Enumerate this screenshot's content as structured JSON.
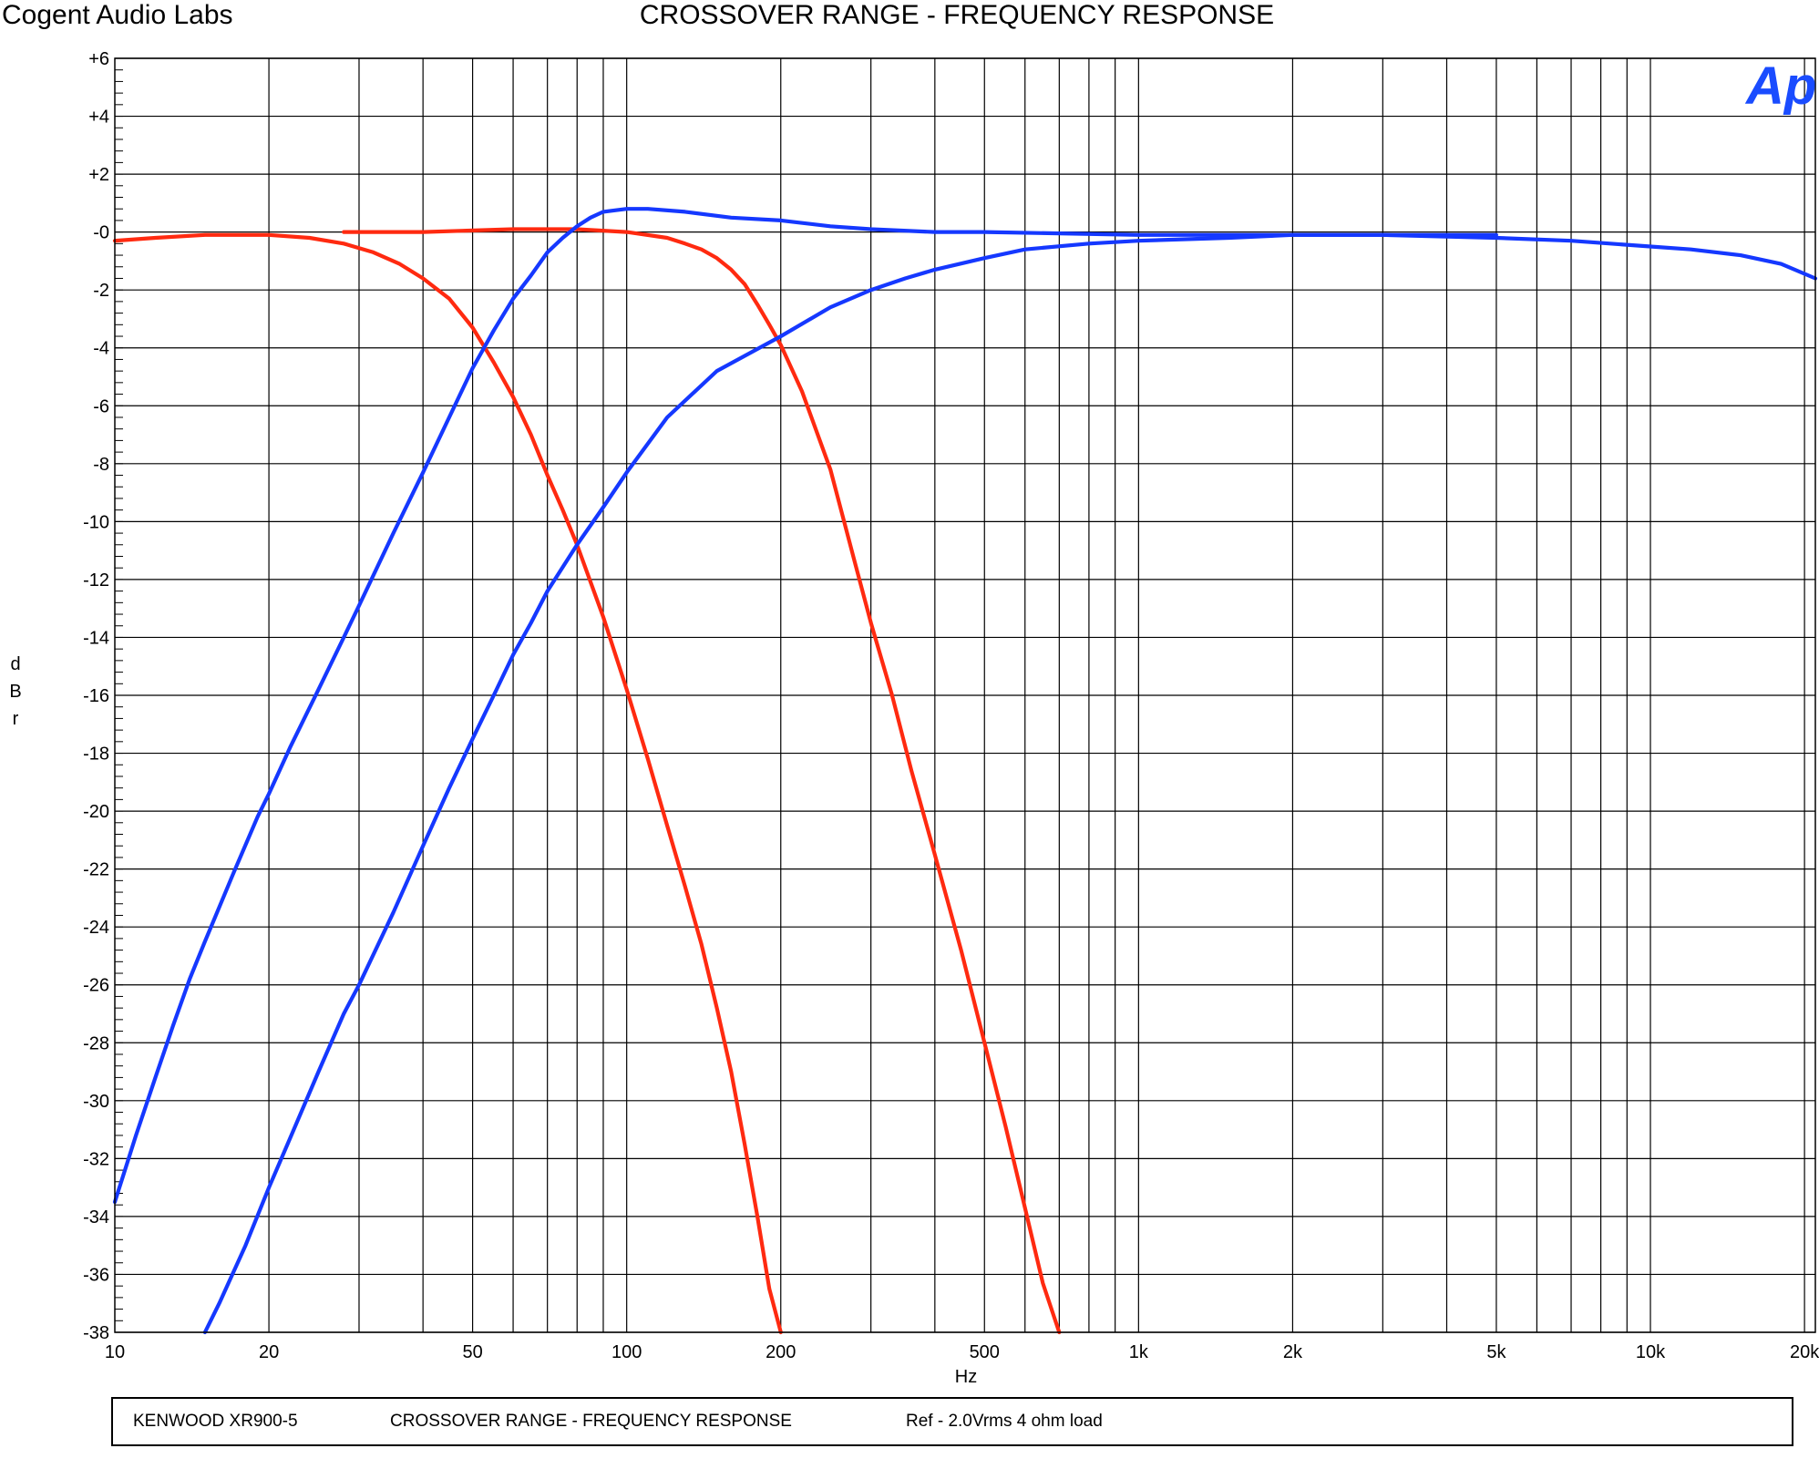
{
  "header": {
    "brand": "Cogent Audio Labs",
    "title": "CROSSOVER RANGE  -  FREQUENCY RESPONSE"
  },
  "logo_text": "Ap",
  "colors": {
    "blue": "#1538ff",
    "red": "#ff2a10",
    "grid": "#000000",
    "logo": "#1a4cff"
  },
  "footer": {
    "model": "KENWOOD XR900-5",
    "test": "CROSSOVER RANGE  -  FREQUENCY RESPONSE",
    "ref": "Ref - 2.0Vrms   4 ohm load"
  },
  "chart_data": {
    "type": "line",
    "title": "CROSSOVER RANGE  -  FREQUENCY RESPONSE",
    "xlabel": "Hz",
    "ylabel": "dBr",
    "x_scale": "log",
    "xlim": [
      10,
      21000
    ],
    "ylim": [
      -38,
      6
    ],
    "grid": true,
    "x_ticks": [
      {
        "value": 10,
        "label": "10"
      },
      {
        "value": 20,
        "label": "20"
      },
      {
        "value": 50,
        "label": "50"
      },
      {
        "value": 100,
        "label": "100"
      },
      {
        "value": 200,
        "label": "200"
      },
      {
        "value": 500,
        "label": "500"
      },
      {
        "value": 1000,
        "label": "1k"
      },
      {
        "value": 2000,
        "label": "2k"
      },
      {
        "value": 5000,
        "label": "5k"
      },
      {
        "value": 10000,
        "label": "10k"
      },
      {
        "value": 20000,
        "label": "20k"
      }
    ],
    "y_ticks": [
      {
        "value": 6,
        "label": "+6"
      },
      {
        "value": 4,
        "label": "+4"
      },
      {
        "value": 2,
        "label": "+2"
      },
      {
        "value": 0,
        "label": "-0"
      },
      {
        "value": -2,
        "label": "-2"
      },
      {
        "value": -4,
        "label": "-4"
      },
      {
        "value": -6,
        "label": "-6"
      },
      {
        "value": -8,
        "label": "-8"
      },
      {
        "value": -10,
        "label": "-10"
      },
      {
        "value": -12,
        "label": "-12"
      },
      {
        "value": -14,
        "label": "-14"
      },
      {
        "value": -16,
        "label": "-16"
      },
      {
        "value": -18,
        "label": "-18"
      },
      {
        "value": -20,
        "label": "-20"
      },
      {
        "value": -22,
        "label": "-22"
      },
      {
        "value": -24,
        "label": "-24"
      },
      {
        "value": -26,
        "label": "-26"
      },
      {
        "value": -28,
        "label": "-28"
      },
      {
        "value": -30,
        "label": "-30"
      },
      {
        "value": -32,
        "label": "-32"
      },
      {
        "value": -34,
        "label": "-34"
      },
      {
        "value": -36,
        "label": "-36"
      },
      {
        "value": -38,
        "label": "-38"
      }
    ],
    "series": [
      {
        "color": "#ff2a10",
        "points": [
          [
            10,
            -0.3
          ],
          [
            12,
            -0.2
          ],
          [
            15,
            -0.1
          ],
          [
            20,
            -0.1
          ],
          [
            24,
            -0.2
          ],
          [
            28,
            -0.4
          ],
          [
            32,
            -0.7
          ],
          [
            36,
            -1.1
          ],
          [
            40,
            -1.6
          ],
          [
            45,
            -2.3
          ],
          [
            50,
            -3.3
          ],
          [
            55,
            -4.5
          ],
          [
            60,
            -5.7
          ],
          [
            65,
            -7.0
          ],
          [
            70,
            -8.4
          ],
          [
            75,
            -9.6
          ],
          [
            80,
            -10.8
          ],
          [
            90,
            -13.3
          ],
          [
            100,
            -15.8
          ],
          [
            110,
            -18.2
          ],
          [
            120,
            -20.5
          ],
          [
            130,
            -22.6
          ],
          [
            140,
            -24.6
          ],
          [
            150,
            -26.8
          ],
          [
            160,
            -29.0
          ],
          [
            170,
            -31.5
          ],
          [
            180,
            -34.0
          ],
          [
            190,
            -36.5
          ],
          [
            200,
            -38.0
          ]
        ]
      },
      {
        "color": "#ff2a10",
        "points": [
          [
            28,
            0
          ],
          [
            40,
            0
          ],
          [
            60,
            0.1
          ],
          [
            80,
            0.1
          ],
          [
            100,
            0
          ],
          [
            120,
            -0.2
          ],
          [
            130,
            -0.4
          ],
          [
            140,
            -0.6
          ],
          [
            150,
            -0.9
          ],
          [
            160,
            -1.3
          ],
          [
            170,
            -1.8
          ],
          [
            180,
            -2.5
          ],
          [
            190,
            -3.2
          ],
          [
            200,
            -3.9
          ],
          [
            220,
            -5.5
          ],
          [
            250,
            -8.2
          ],
          [
            280,
            -11.5
          ],
          [
            300,
            -13.5
          ],
          [
            330,
            -16.0
          ],
          [
            360,
            -18.6
          ],
          [
            400,
            -21.5
          ],
          [
            450,
            -24.8
          ],
          [
            500,
            -28.0
          ],
          [
            550,
            -30.9
          ],
          [
            600,
            -33.7
          ],
          [
            650,
            -36.3
          ],
          [
            700,
            -38.0
          ]
        ]
      },
      {
        "color": "#1538ff",
        "points": [
          [
            10,
            -33.5
          ],
          [
            11,
            -31.2
          ],
          [
            12,
            -29.2
          ],
          [
            13,
            -27.4
          ],
          [
            14,
            -25.8
          ],
          [
            15,
            -24.5
          ],
          [
            17,
            -22.2
          ],
          [
            19,
            -20.2
          ],
          [
            20,
            -19.4
          ],
          [
            22,
            -17.8
          ],
          [
            25,
            -15.8
          ],
          [
            28,
            -14.0
          ],
          [
            30,
            -12.9
          ],
          [
            35,
            -10.4
          ],
          [
            40,
            -8.3
          ],
          [
            45,
            -6.4
          ],
          [
            50,
            -4.7
          ],
          [
            55,
            -3.4
          ],
          [
            60,
            -2.3
          ],
          [
            65,
            -1.5
          ],
          [
            70,
            -0.7
          ],
          [
            75,
            -0.2
          ],
          [
            80,
            0.2
          ],
          [
            85,
            0.5
          ],
          [
            90,
            0.7
          ],
          [
            100,
            0.8
          ],
          [
            110,
            0.8
          ],
          [
            130,
            0.7
          ],
          [
            160,
            0.5
          ],
          [
            200,
            0.4
          ],
          [
            250,
            0.2
          ],
          [
            300,
            0.1
          ],
          [
            400,
            0
          ],
          [
            500,
            0
          ],
          [
            1000,
            -0.1
          ],
          [
            2000,
            -0.1
          ],
          [
            3000,
            -0.1
          ],
          [
            5000,
            -0.2
          ],
          [
            7000,
            -0.3
          ],
          [
            10000,
            -0.5
          ],
          [
            12000,
            -0.6
          ],
          [
            15000,
            -0.8
          ],
          [
            18000,
            -1.1
          ],
          [
            21000,
            -1.6
          ]
        ]
      },
      {
        "color": "#1538ff",
        "points": [
          [
            15,
            -38.0
          ],
          [
            16,
            -37.0
          ],
          [
            18,
            -35.0
          ],
          [
            20,
            -33.0
          ],
          [
            22,
            -31.3
          ],
          [
            25,
            -29.0
          ],
          [
            28,
            -27.0
          ],
          [
            30,
            -26.0
          ],
          [
            35,
            -23.5
          ],
          [
            40,
            -21.2
          ],
          [
            45,
            -19.2
          ],
          [
            50,
            -17.5
          ],
          [
            55,
            -16.0
          ],
          [
            60,
            -14.6
          ],
          [
            65,
            -13.5
          ],
          [
            70,
            -12.4
          ],
          [
            80,
            -10.8
          ],
          [
            90,
            -9.5
          ],
          [
            100,
            -8.3
          ],
          [
            120,
            -6.4
          ],
          [
            150,
            -4.8
          ],
          [
            200,
            -3.6
          ],
          [
            250,
            -2.6
          ],
          [
            300,
            -2.0
          ],
          [
            350,
            -1.6
          ],
          [
            400,
            -1.3
          ],
          [
            500,
            -0.9
          ],
          [
            600,
            -0.6
          ],
          [
            800,
            -0.4
          ],
          [
            1000,
            -0.3
          ],
          [
            1500,
            -0.2
          ],
          [
            2000,
            -0.1
          ],
          [
            5000,
            -0.1
          ]
        ]
      }
    ]
  }
}
